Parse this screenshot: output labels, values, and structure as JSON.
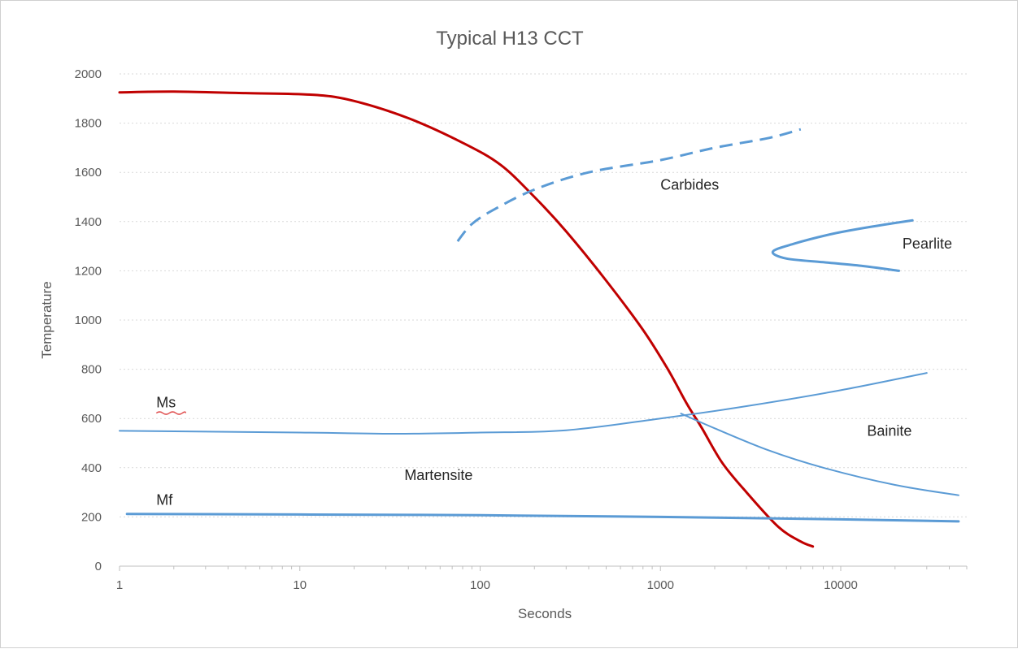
{
  "chart_data": {
    "type": "line",
    "title": "Typical H13 CCT",
    "xlabel": "Seconds",
    "ylabel": "Temperature",
    "xscale": "log",
    "xlim": [
      1,
      50000
    ],
    "ylim": [
      0,
      2000
    ],
    "yticks": [
      0,
      200,
      400,
      600,
      800,
      1000,
      1200,
      1400,
      1600,
      1800,
      2000
    ],
    "xticks": [
      1,
      10,
      100,
      1000,
      10000
    ],
    "xtick_labels": [
      "1",
      "10",
      "100",
      "1000",
      "10000"
    ],
    "ytick_labels": [
      "0",
      "200",
      "400",
      "600",
      "800",
      "1000",
      "1200",
      "1400",
      "1600",
      "1800",
      "2000"
    ],
    "grid": "horizontal dotted",
    "legend": "none",
    "series": [
      {
        "color": "#c00000",
        "width": 3,
        "dash": false,
        "points": [
          [
            1,
            1925
          ],
          [
            2,
            1928
          ],
          [
            5,
            1922
          ],
          [
            12,
            1915
          ],
          [
            20,
            1890
          ],
          [
            40,
            1820
          ],
          [
            80,
            1720
          ],
          [
            130,
            1630
          ],
          [
            200,
            1500
          ],
          [
            300,
            1360
          ],
          [
            500,
            1160
          ],
          [
            800,
            960
          ],
          [
            1100,
            800
          ],
          [
            1400,
            660
          ],
          [
            1700,
            560
          ],
          [
            2200,
            420
          ],
          [
            3000,
            300
          ],
          [
            4500,
            160
          ],
          [
            6000,
            100
          ],
          [
            7000,
            80
          ]
        ]
      },
      {
        "color": "#5b9bd5",
        "width": 3,
        "dash": true,
        "points": [
          [
            75,
            1320
          ],
          [
            90,
            1390
          ],
          [
            120,
            1450
          ],
          [
            200,
            1530
          ],
          [
            400,
            1600
          ],
          [
            1000,
            1650
          ],
          [
            2000,
            1700
          ],
          [
            4000,
            1740
          ],
          [
            6000,
            1775
          ]
        ]
      },
      {
        "color": "#5b9bd5",
        "width": 3,
        "dash": false,
        "points": [
          [
            25000,
            1405
          ],
          [
            15000,
            1380
          ],
          [
            9000,
            1350
          ],
          [
            5500,
            1310
          ],
          [
            4200,
            1278
          ],
          [
            5000,
            1250
          ],
          [
            8000,
            1235
          ],
          [
            13000,
            1220
          ],
          [
            21000,
            1200
          ]
        ]
      },
      {
        "color": "#5b9bd5",
        "width": 2,
        "dash": false,
        "points": [
          [
            1,
            550
          ],
          [
            10,
            543
          ],
          [
            35,
            538
          ],
          [
            100,
            543
          ],
          [
            300,
            552
          ],
          [
            1000,
            600
          ],
          [
            3000,
            650
          ],
          [
            10000,
            715
          ],
          [
            30000,
            785
          ]
        ]
      },
      {
        "color": "#5b9bd5",
        "width": 2,
        "dash": false,
        "points": [
          [
            1300,
            620
          ],
          [
            2000,
            560
          ],
          [
            4000,
            470
          ],
          [
            8000,
            400
          ],
          [
            20000,
            330
          ],
          [
            45000,
            288
          ]
        ]
      },
      {
        "color": "#5b9bd5",
        "width": 3,
        "dash": false,
        "points": [
          [
            1.1,
            212
          ],
          [
            10,
            210
          ],
          [
            100,
            207
          ],
          [
            1000,
            200
          ],
          [
            10000,
            190
          ],
          [
            45000,
            182
          ]
        ]
      }
    ],
    "annotations": [
      {
        "text": "Carbides",
        "x": 1000,
        "y": 1530
      },
      {
        "text": "Pearlite",
        "x": 22000,
        "y": 1290
      },
      {
        "text": "Bainite",
        "x": 14000,
        "y": 530
      },
      {
        "text": "Martensite",
        "x": 38,
        "y": 350
      },
      {
        "text": "Ms",
        "x": 1.6,
        "y": 645
      },
      {
        "text": "Mf",
        "x": 1.6,
        "y": 250
      }
    ]
  }
}
